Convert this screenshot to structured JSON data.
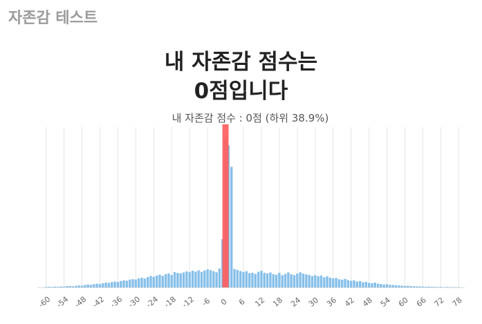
{
  "app": {
    "title": "자존감 테스트"
  },
  "result": {
    "headline_line1": "내 자존감 점수는",
    "headline_line2": "0점입니다",
    "caption": "내 자존감 점수 :  0점 (하위 38.9%)"
  },
  "colors": {
    "bar": "#85bfe9",
    "marker": "#ff5a5a",
    "grid": "#e6e6e6",
    "tick_text": "#666666"
  },
  "chart_data": {
    "type": "bar",
    "xlim": [
      -62,
      80
    ],
    "ylim": [
      0,
      100
    ],
    "x_ticks": [
      -60,
      -54,
      -48,
      -42,
      -36,
      -30,
      -24,
      -18,
      -12,
      -6,
      0,
      6,
      12,
      18,
      24,
      30,
      36,
      42,
      48,
      54,
      60,
      66,
      72,
      78
    ],
    "grid": true,
    "marker_x": 0,
    "marker_label": "0",
    "x": [
      -60,
      -59,
      -58,
      -57,
      -56,
      -55,
      -54,
      -53,
      -52,
      -51,
      -50,
      -49,
      -48,
      -47,
      -46,
      -45,
      -44,
      -43,
      -42,
      -41,
      -40,
      -39,
      -38,
      -37,
      -36,
      -35,
      -34,
      -33,
      -32,
      -31,
      -30,
      -29,
      -28,
      -27,
      -26,
      -25,
      -24,
      -23,
      -22,
      -21,
      -20,
      -19,
      -18,
      -17,
      -16,
      -15,
      -14,
      -13,
      -12,
      -11,
      -10,
      -9,
      -8,
      -7,
      -6,
      -5,
      -4,
      -3,
      -2,
      -1,
      0,
      1,
      2,
      3,
      4,
      5,
      6,
      7,
      8,
      9,
      10,
      11,
      12,
      13,
      14,
      15,
      16,
      17,
      18,
      19,
      20,
      21,
      22,
      23,
      24,
      25,
      26,
      27,
      28,
      29,
      30,
      31,
      32,
      33,
      34,
      35,
      36,
      37,
      38,
      39,
      40,
      41,
      42,
      43,
      44,
      45,
      46,
      47,
      48,
      49,
      50,
      51,
      52,
      53,
      54,
      55,
      56,
      57,
      58,
      59,
      60,
      61,
      62,
      63,
      64,
      65,
      66,
      67,
      68,
      69,
      70,
      71,
      72,
      73,
      74,
      75,
      76,
      77,
      78
    ],
    "values": [
      0.3,
      0.4,
      0.3,
      0.5,
      0.4,
      0.6,
      0.5,
      0.8,
      0.9,
      0.7,
      1,
      1.2,
      1.1,
      1.5,
      1.8,
      1.6,
      2,
      2.3,
      2.1,
      2.6,
      3,
      2.8,
      3.3,
      3.6,
      3.4,
      4,
      4.4,
      4.2,
      4.8,
      5.1,
      4.9,
      5.6,
      6,
      5.5,
      6.4,
      7.1,
      6.6,
      7.4,
      7.9,
      7.2,
      8.2,
      8.7,
      7.7,
      9.5,
      9,
      8.8,
      9.3,
      10,
      9.6,
      10.4,
      9.8,
      10.6,
      9.7,
      10.5,
      11.2,
      10.8,
      10.1,
      9.4,
      11.8,
      30.1,
      93.4,
      88.6,
      75.2,
      11.5,
      10.9,
      10.2,
      9.6,
      10.1,
      8.9,
      9.1,
      8.4,
      9.7,
      10.4,
      9.1,
      8.7,
      9.3,
      8.2,
      7.9,
      9.1,
      7.6,
      8.4,
      9.3,
      8.2,
      7.7,
      8.6,
      9.4,
      8.6,
      8.1,
      7.8,
      7.1,
      7.6,
      6.9,
      7.4,
      6.3,
      6.9,
      6.1,
      5.6,
      5.9,
      5.1,
      4.8,
      5.3,
      4.6,
      4.1,
      4.4,
      3.6,
      3.9,
      3.2,
      3.4,
      2.8,
      2.6,
      3,
      2.3,
      2.1,
      1.8,
      2,
      1.6,
      1.5,
      1.3,
      1.2,
      1.1,
      0.9,
      1,
      0.8,
      0.7,
      0.6,
      0.6,
      0.5,
      0.4,
      0.5,
      0.4,
      0.3,
      0.3,
      0.3,
      0.2,
      0.3,
      0.2,
      0.2,
      0.2,
      0.1
    ]
  }
}
